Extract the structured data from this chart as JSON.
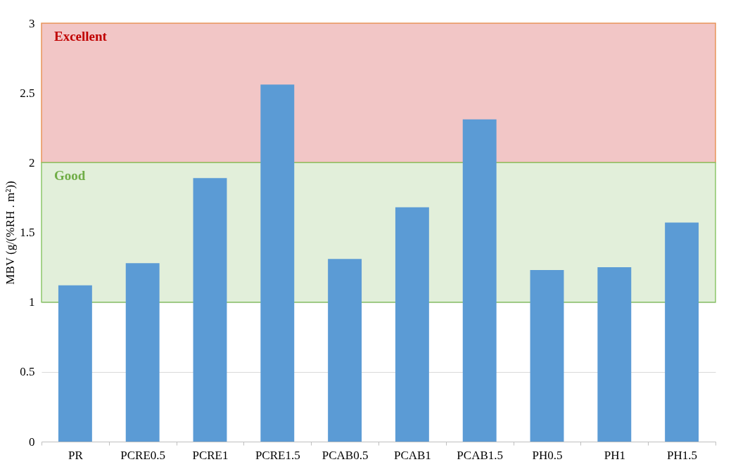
{
  "chart_data": {
    "type": "bar",
    "ylabel": "MBV (g/(%RH . m²))",
    "categories": [
      "PR",
      "PCRE0.5",
      "PCRE1",
      "PCRE1.5",
      "PCAB0.5",
      "PCAB1",
      "PCAB1.5",
      "PH0.5",
      "PH1",
      "PH1.5"
    ],
    "values": [
      1.12,
      1.28,
      1.89,
      2.56,
      1.31,
      1.68,
      2.31,
      1.23,
      1.25,
      1.57
    ],
    "color": "#5b9bd5",
    "ylim": [
      0,
      3
    ],
    "yticks": [
      0,
      0.5,
      1,
      1.5,
      2,
      2.5,
      3
    ],
    "grid": "y",
    "bands": [
      {
        "axis": "y",
        "from": 2,
        "to": 3,
        "label": "Excellent",
        "color": "#f2c6c6"
      },
      {
        "axis": "y",
        "from": 1,
        "to": 2,
        "label": "Good",
        "color": "#e2efda"
      }
    ]
  }
}
